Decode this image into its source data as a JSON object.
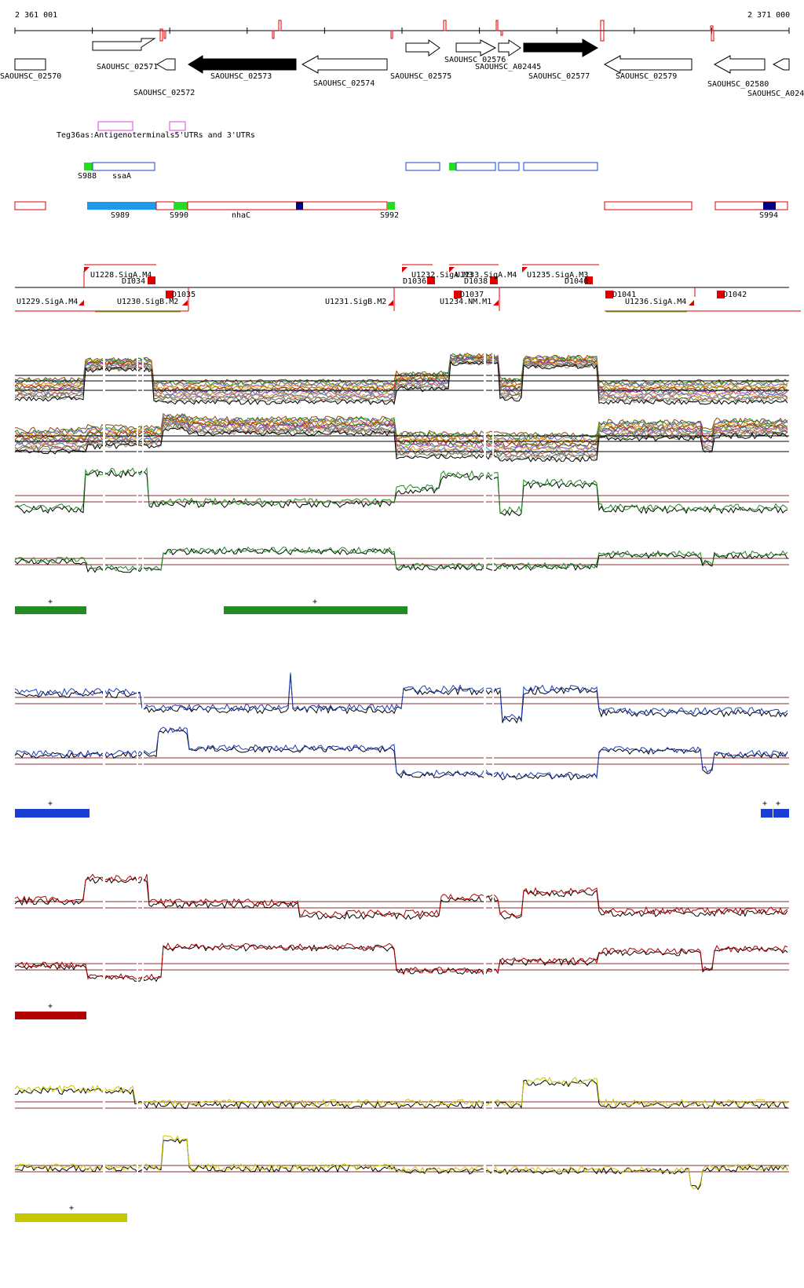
{
  "coords": {
    "start": "2 361 001",
    "end": "2 371 000"
  },
  "genes": [
    {
      "label": "SAOUHSC_02570",
      "strand": "none",
      "fill": "none"
    },
    {
      "label": "SAOUHSC_02571",
      "strand": "+",
      "fill": "none"
    },
    {
      "label": "SAOUHSC_02572",
      "strand": "-",
      "fill": "none"
    },
    {
      "label": "SAOUHSC_02573",
      "strand": "-",
      "fill": "black"
    },
    {
      "label": "SAOUHSC_02574",
      "strand": "-",
      "fill": "none"
    },
    {
      "label": "SAOUHSC_02575",
      "strand": "+",
      "fill": "none"
    },
    {
      "label": "SAOUHSC_02576",
      "strand": "+",
      "fill": "none"
    },
    {
      "label": "SAOUHSC_A02445",
      "strand": "+",
      "fill": "none"
    },
    {
      "label": "SAOUHSC_02577",
      "strand": "+",
      "fill": "black"
    },
    {
      "label": "SAOUHSC_02579",
      "strand": "-",
      "fill": "none"
    },
    {
      "label": "SAOUHSC_02580",
      "strand": "-",
      "fill": "none"
    },
    {
      "label": "SAOUHSC_A024",
      "strand": "-",
      "fill": "none"
    }
  ],
  "utr_label": "Teg36as:Antigenoterminals5'UTRs and 3'UTRs",
  "blue_features": [
    {
      "label": "S988"
    },
    {
      "label": "ssaA"
    }
  ],
  "red_features": [
    {
      "label": "S989"
    },
    {
      "label": "S990"
    },
    {
      "label": "nhaC"
    },
    {
      "label": "S992"
    },
    {
      "label": "S994"
    }
  ],
  "transcription_units": [
    {
      "label": "U1228.SigA.M4"
    },
    {
      "label": "U1229.SigA.M4"
    },
    {
      "label": "U1230.SigB.M2"
    },
    {
      "label": "U1231.SigB.M2"
    },
    {
      "label": "U1232.SigA.M3"
    },
    {
      "label": "U1233.SigA.M4"
    },
    {
      "label": "U1234.NM.M1"
    },
    {
      "label": "U1235.SigA.M3"
    },
    {
      "label": "U1236.SigA.M4"
    }
  ],
  "terminators": [
    {
      "label": "D1034"
    },
    {
      "label": "D1035"
    },
    {
      "label": "D1036"
    },
    {
      "label": "D1037"
    },
    {
      "label": "D1038"
    },
    {
      "label": "D1040"
    },
    {
      "label": "D1041"
    },
    {
      "label": "D1042"
    }
  ],
  "panels": [
    {
      "name": "green",
      "color": "#228b22",
      "plus": "+"
    },
    {
      "name": "blue",
      "color": "#1f3fbf",
      "plus": "+"
    },
    {
      "name": "red",
      "color": "#b30000",
      "plus": "+"
    },
    {
      "name": "yellow",
      "color": "#c8c800",
      "plus": "+"
    }
  ],
  "colors": {
    "gene_outline": "#000000",
    "feature_red": "#e00000",
    "feature_blue": "#1a3fd6",
    "feature_green": "#22dd22",
    "feature_cyan": "#1e9be8",
    "feature_navy": "#000080",
    "utr_magenta": "#e040e0",
    "baseline_brown": "#8b2f2f"
  }
}
